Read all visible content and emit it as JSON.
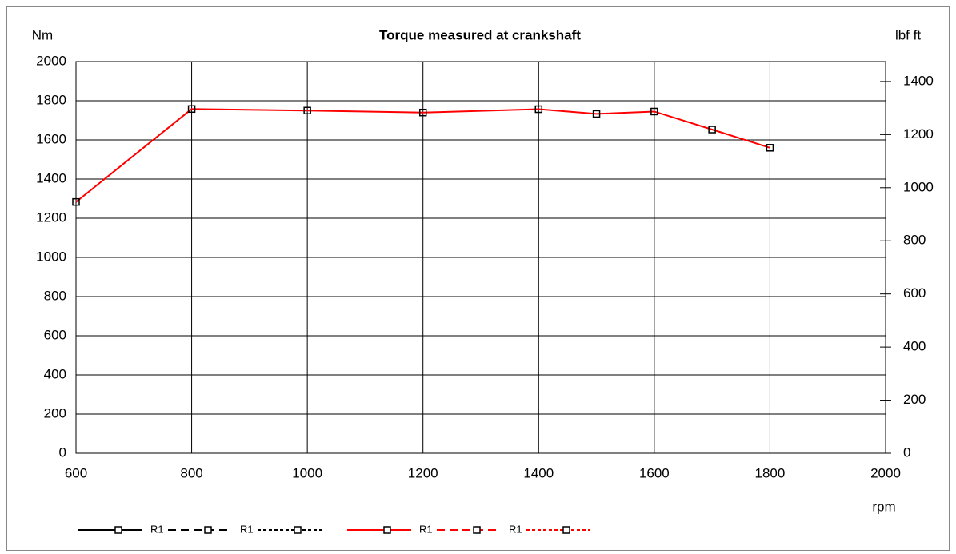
{
  "chart_data": {
    "type": "line",
    "title": "Torque measured at crankshaft",
    "ylabel": "Nm",
    "y2label": "lbf ft",
    "xlabel": "rpm",
    "x": [
      600,
      800,
      1000,
      1200,
      1400,
      1500,
      1600,
      1700,
      1800
    ],
    "series": [
      {
        "color": "#ff0000",
        "marker_color": "#000000",
        "values": [
          1283,
          1758,
          1750,
          1740,
          1757,
          1733,
          1745,
          1653,
          1560
        ]
      }
    ],
    "xlim": [
      600,
      2000
    ],
    "xticks": [
      600,
      800,
      1000,
      1200,
      1400,
      1600,
      1800,
      2000
    ],
    "ylim": [
      0,
      2000
    ],
    "yticks": [
      0,
      200,
      400,
      600,
      800,
      1000,
      1200,
      1400,
      1600,
      1800,
      2000
    ],
    "y2lim": [
      0,
      1475
    ],
    "y2ticks": [
      0,
      200,
      400,
      600,
      800,
      1000,
      1200,
      1400
    ],
    "grid": true,
    "legend": [
      {
        "name": "R1",
        "color": "#000000",
        "dash": "solid"
      },
      {
        "name": "R1",
        "color": "#000000",
        "dash": "dashed"
      },
      {
        "name": null,
        "color": "#000000",
        "dash": "dotted"
      },
      {
        "name": "R1",
        "color": "#ff0000",
        "dash": "solid"
      },
      {
        "name": "R1",
        "color": "#ff0000",
        "dash": "dashed"
      },
      {
        "name": null,
        "color": "#ff0000",
        "dash": "dotted"
      }
    ]
  }
}
